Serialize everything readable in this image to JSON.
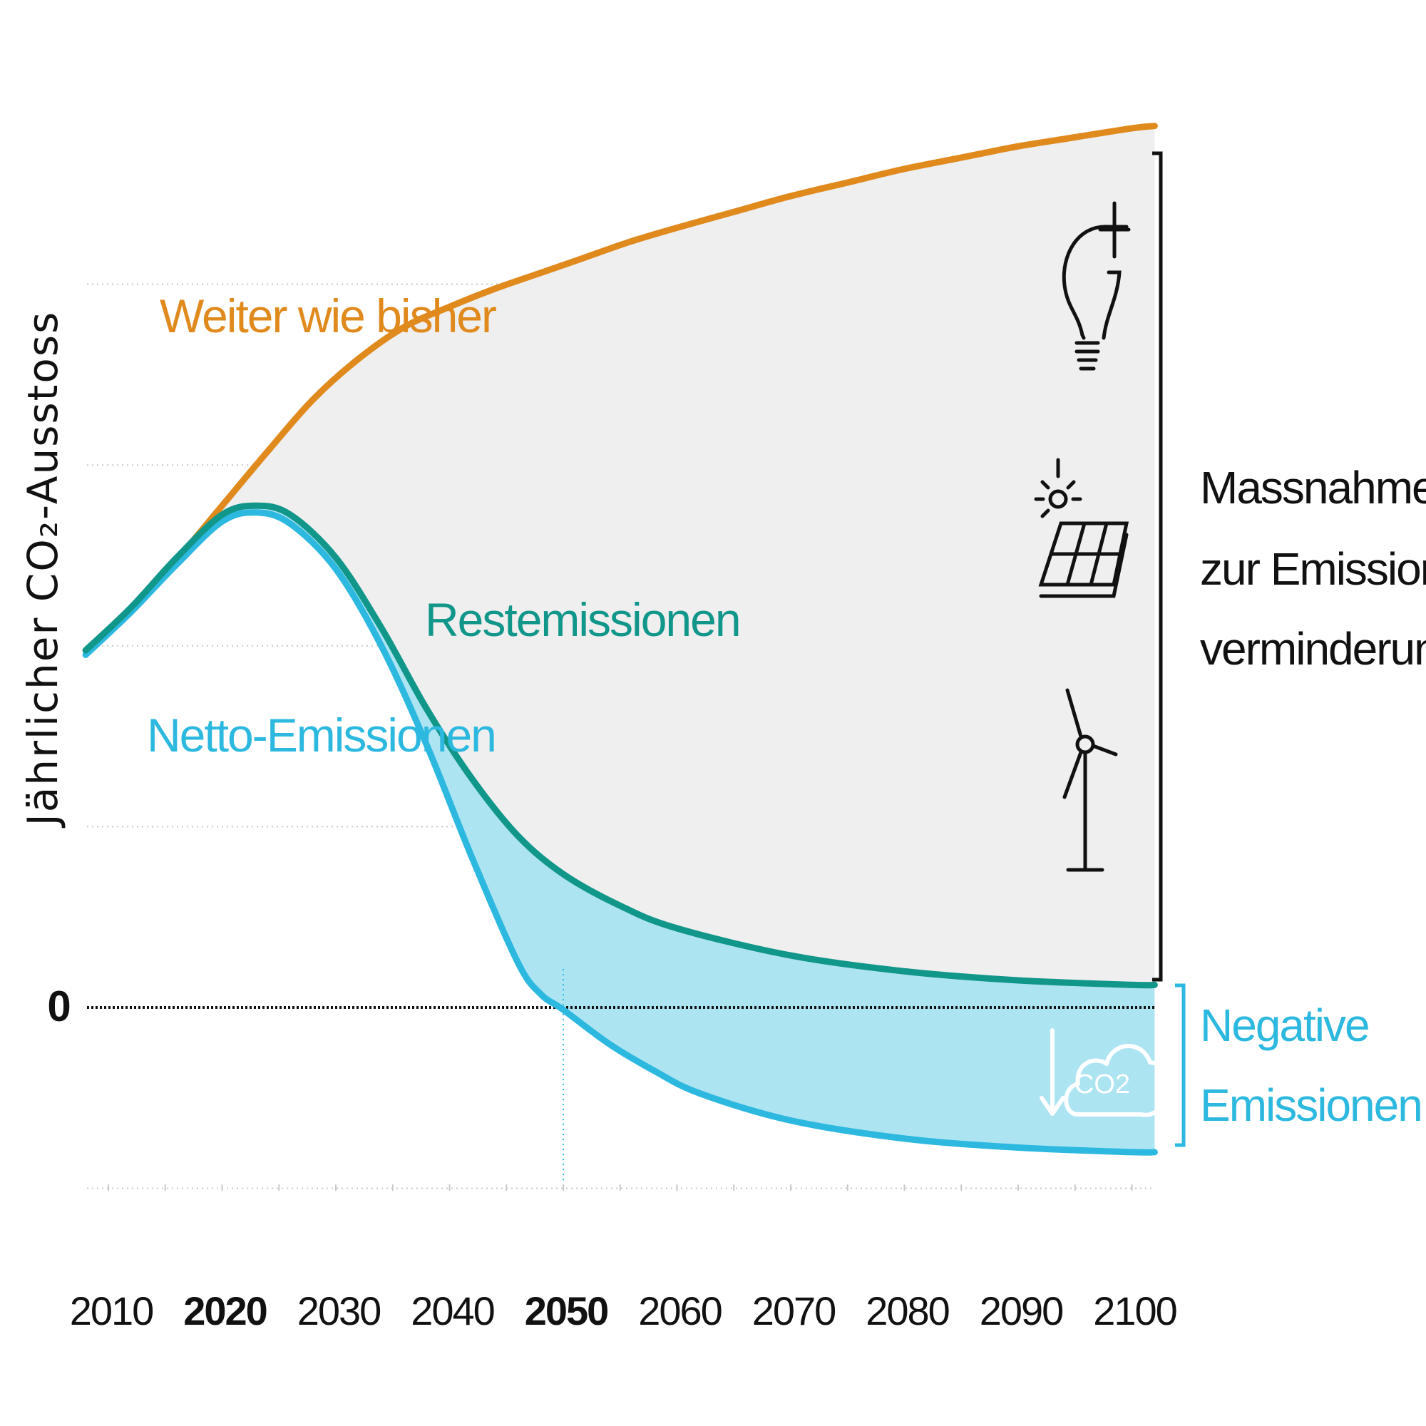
{
  "colors": {
    "bau": "#e08a1e",
    "residual": "#11968a",
    "net": "#2cb8df",
    "negative_fill": "#ade4f2",
    "mitigation_fill": "#efefef",
    "text": "#111111",
    "grid": "#c8c8c8"
  },
  "chart_data": {
    "type": "line",
    "ylabel": "Jährlicher CO₂-Ausstoss",
    "zero_label": "0",
    "xlim": [
      2007.5,
      2102.5
    ],
    "ylim": [
      -10,
      40
    ],
    "x_ticks": [
      "2010",
      "2020",
      "2030",
      "2040",
      "2050",
      "2060",
      "2070",
      "2080",
      "2090",
      "2100"
    ],
    "bold_ticks": [
      "2020",
      "2050"
    ],
    "highlight_year": 2050,
    "series": [
      {
        "key": "bau",
        "name": "Weiter wie bisher",
        "x": [
          2008,
          2012,
          2016,
          2020,
          2024,
          2028,
          2032,
          2036,
          2040,
          2044,
          2048,
          2052,
          2056,
          2060,
          2065,
          2070,
          2075,
          2080,
          2085,
          2090,
          2095,
          2100,
          2102
        ],
        "y": [
          15.8,
          17.6,
          19.8,
          22.2,
          24.6,
          26.9,
          28.7,
          30.1,
          31.0,
          31.8,
          32.5,
          33.2,
          33.9,
          34.5,
          35.2,
          35.9,
          36.5,
          37.1,
          37.6,
          38.1,
          38.5,
          38.9,
          39.0
        ]
      },
      {
        "key": "residual",
        "name": "Restemissionen",
        "x": [
          2008,
          2012,
          2016,
          2020,
          2023,
          2026,
          2030,
          2034,
          2038,
          2042,
          2046,
          2050,
          2055,
          2060,
          2070,
          2080,
          2090,
          2100,
          2102
        ],
        "y": [
          15.8,
          17.7,
          19.9,
          21.8,
          22.2,
          21.8,
          19.9,
          16.8,
          13.2,
          10.1,
          7.6,
          5.9,
          4.5,
          3.5,
          2.3,
          1.6,
          1.2,
          1.0,
          1.0
        ]
      },
      {
        "key": "net",
        "name": "Netto-Emissionen",
        "x": [
          2008,
          2012,
          2016,
          2020,
          2023,
          2026,
          2030,
          2034,
          2038,
          2042,
          2046,
          2048,
          2050,
          2054,
          2058,
          2062,
          2070,
          2080,
          2090,
          2100,
          2102
        ],
        "y": [
          15.6,
          17.5,
          19.6,
          21.5,
          21.9,
          21.4,
          19.4,
          16.0,
          11.6,
          6.6,
          2.0,
          0.6,
          -0.1,
          -1.6,
          -2.8,
          -3.8,
          -5.0,
          -5.8,
          -6.2,
          -6.4,
          -6.4
        ]
      }
    ],
    "annotations": {
      "mitigation": [
        "Massnahmen",
        "zur Emissions-",
        "verminderung"
      ],
      "negative": [
        "Negative",
        "Emissionen"
      ],
      "cloud_text": "CO2"
    },
    "icons": [
      "light-bulb-icon",
      "solar-panel-icon",
      "wind-turbine-icon",
      "co2-cloud-icon"
    ],
    "legend": "none",
    "grid": true
  }
}
